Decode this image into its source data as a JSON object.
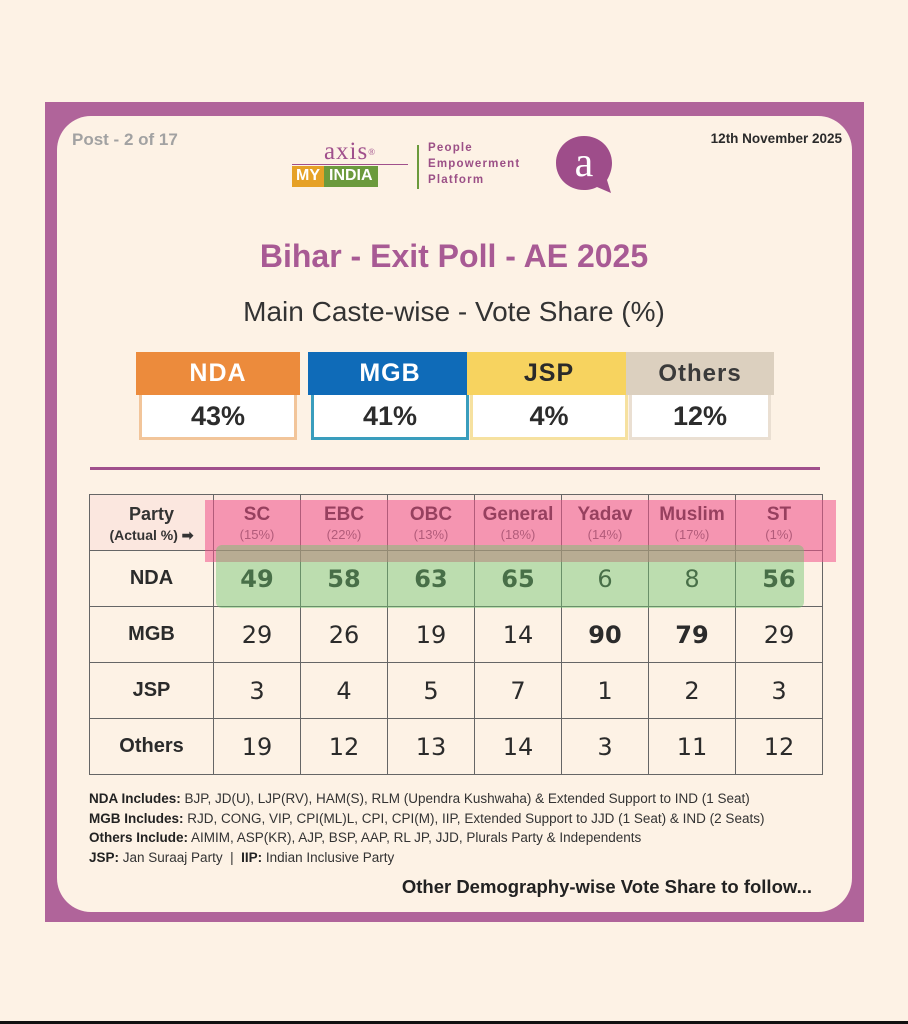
{
  "header": {
    "post": "Post - 2 of 17",
    "date": "12th November 2025",
    "logo_axis": "axis",
    "logo_reg": "®",
    "logo_my": "MY",
    "logo_india": "INDIA",
    "platform": [
      "People",
      "Empowerment",
      "Platform"
    ]
  },
  "colors": {
    "frame": "#b0649a",
    "nda": "#ec8b3c",
    "mgb": "#0f6bb8",
    "jsp": "#f7d35f",
    "others": "#dcd0bf"
  },
  "chart_data": [
    {
      "type": "table",
      "title": "Bihar - Exit Poll - AE 2025",
      "subtitle": "Main Caste-wise - Vote Share (%)",
      "overall": [
        {
          "party": "NDA",
          "value": "43%"
        },
        {
          "party": "MGB",
          "value": "41%"
        },
        {
          "party": "JSP",
          "value": "4%"
        },
        {
          "party": "Others",
          "value": "12%"
        }
      ],
      "header_label": "Party",
      "header_sub": "(Actual %)",
      "header_arrow": "➡",
      "columns": [
        {
          "name": "SC",
          "actual": "(15%)"
        },
        {
          "name": "EBC",
          "actual": "(22%)"
        },
        {
          "name": "OBC",
          "actual": "(13%)"
        },
        {
          "name": "General",
          "actual": "(18%)"
        },
        {
          "name": "Yadav",
          "actual": "(14%)"
        },
        {
          "name": "Muslim",
          "actual": "(17%)"
        },
        {
          "name": "ST",
          "actual": "(1%)"
        }
      ],
      "rows": [
        {
          "party": "NDA",
          "values": [
            49,
            58,
            63,
            65,
            6,
            8,
            56
          ],
          "bold": [
            true,
            true,
            true,
            true,
            false,
            false,
            true
          ]
        },
        {
          "party": "MGB",
          "values": [
            29,
            26,
            19,
            14,
            90,
            79,
            29
          ],
          "bold": [
            false,
            false,
            false,
            false,
            true,
            true,
            false
          ]
        },
        {
          "party": "JSP",
          "values": [
            3,
            4,
            5,
            7,
            1,
            2,
            3
          ],
          "bold": [
            false,
            false,
            false,
            false,
            false,
            false,
            false
          ]
        },
        {
          "party": "Others",
          "values": [
            19,
            12,
            13,
            14,
            3,
            11,
            12
          ],
          "bold": [
            false,
            false,
            false,
            false,
            false,
            false,
            false
          ]
        }
      ]
    }
  ],
  "notes": [
    {
      "label": "NDA Includes:",
      "text": " BJP, JD(U), LJP(RV), HAM(S), RLM (Upendra Kushwaha) & Extended Support to IND (1 Seat)"
    },
    {
      "label": "MGB Includes:",
      "text": " RJD, CONG, VIP, CPI(ML)L, CPI, CPI(M), IIP, Extended Support to JJD (1 Seat) & IND (2 Seats)"
    },
    {
      "label": "Others Include:",
      "text": " AIMIM, ASP(KR), AJP, BSP, AAP, RL JP, JJD, Plurals Party & Independents"
    }
  ],
  "note_jsp": {
    "label": "JSP:",
    "text": " Jan Suraaj Party",
    "sep": "|",
    "label2": "IIP:",
    "text2": " Indian Inclusive Party"
  },
  "footer": "Other Demography-wise Vote Share to follow..."
}
